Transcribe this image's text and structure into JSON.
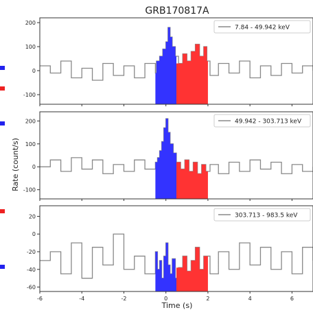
{
  "chart_data": {
    "type": "line",
    "title": "GRB170817A",
    "xlabel": "Time (s)",
    "ylabel": "Rate (count/s)",
    "xlim": [
      -6,
      7
    ],
    "x_ticks": [
      -6,
      -4,
      -2,
      0,
      2,
      4,
      6
    ],
    "colors": {
      "background": "#888888",
      "blue": "#3333ff",
      "red": "#ff3333"
    },
    "highlight": {
      "blue": [
        -0.5,
        0.5
      ],
      "red": [
        0.5,
        2.0
      ]
    },
    "panels": [
      {
        "legend": "7.84 - 49.942 keV",
        "ylim": [
          -140,
          220
        ],
        "y_ticks": [
          -100,
          0,
          100,
          200
        ],
        "series": [
          {
            "x": -6.0,
            "y": 20
          },
          {
            "x": -5.5,
            "y": -10
          },
          {
            "x": -5.0,
            "y": 40
          },
          {
            "x": -4.5,
            "y": -30
          },
          {
            "x": -4.0,
            "y": 10
          },
          {
            "x": -3.5,
            "y": -40
          },
          {
            "x": -3.0,
            "y": 30
          },
          {
            "x": -2.5,
            "y": -20
          },
          {
            "x": -2.0,
            "y": 20
          },
          {
            "x": -1.5,
            "y": -30
          },
          {
            "x": -1.0,
            "y": 30
          },
          {
            "x": -0.5,
            "y": -10
          },
          {
            "x": -0.45,
            "y": 40
          },
          {
            "x": -0.3,
            "y": 60
          },
          {
            "x": -0.15,
            "y": 90
          },
          {
            "x": 0.0,
            "y": 120
          },
          {
            "x": 0.1,
            "y": 180
          },
          {
            "x": 0.2,
            "y": 140
          },
          {
            "x": 0.3,
            "y": 100
          },
          {
            "x": 0.45,
            "y": 60
          },
          {
            "x": 0.6,
            "y": 30
          },
          {
            "x": 0.8,
            "y": 70
          },
          {
            "x": 1.0,
            "y": 40
          },
          {
            "x": 1.2,
            "y": 80
          },
          {
            "x": 1.4,
            "y": 110
          },
          {
            "x": 1.6,
            "y": 60
          },
          {
            "x": 1.8,
            "y": 100
          },
          {
            "x": 1.95,
            "y": 40
          },
          {
            "x": 2.1,
            "y": -20
          },
          {
            "x": 2.5,
            "y": 30
          },
          {
            "x": 3.0,
            "y": -10
          },
          {
            "x": 3.5,
            "y": 40
          },
          {
            "x": 4.0,
            "y": -30
          },
          {
            "x": 4.5,
            "y": 20
          },
          {
            "x": 5.0,
            "y": -20
          },
          {
            "x": 5.5,
            "y": 30
          },
          {
            "x": 6.0,
            "y": -10
          },
          {
            "x": 6.5,
            "y": 20
          },
          {
            "x": 7.0,
            "y": 0
          }
        ]
      },
      {
        "legend": "49.942 - 303.713 keV",
        "ylim": [
          -140,
          240
        ],
        "y_ticks": [
          -100,
          0,
          100,
          200
        ],
        "series": [
          {
            "x": -6.0,
            "y": 0
          },
          {
            "x": -5.5,
            "y": 30
          },
          {
            "x": -5.0,
            "y": -20
          },
          {
            "x": -4.5,
            "y": 40
          },
          {
            "x": -4.0,
            "y": -10
          },
          {
            "x": -3.5,
            "y": 30
          },
          {
            "x": -3.0,
            "y": -30
          },
          {
            "x": -2.5,
            "y": 10
          },
          {
            "x": -2.0,
            "y": -20
          },
          {
            "x": -1.5,
            "y": 30
          },
          {
            "x": -1.0,
            "y": -10
          },
          {
            "x": -0.5,
            "y": 20
          },
          {
            "x": -0.4,
            "y": 40
          },
          {
            "x": -0.3,
            "y": 70
          },
          {
            "x": -0.2,
            "y": 110
          },
          {
            "x": -0.1,
            "y": 170
          },
          {
            "x": 0.0,
            "y": 210
          },
          {
            "x": 0.1,
            "y": 150
          },
          {
            "x": 0.2,
            "y": 100
          },
          {
            "x": 0.35,
            "y": 60
          },
          {
            "x": 0.5,
            "y": 20
          },
          {
            "x": 0.7,
            "y": -10
          },
          {
            "x": 0.9,
            "y": 30
          },
          {
            "x": 1.1,
            "y": -20
          },
          {
            "x": 1.3,
            "y": 20
          },
          {
            "x": 1.5,
            "y": -30
          },
          {
            "x": 1.7,
            "y": 10
          },
          {
            "x": 1.9,
            "y": -20
          },
          {
            "x": 2.1,
            "y": 10
          },
          {
            "x": 2.5,
            "y": -30
          },
          {
            "x": 3.0,
            "y": 20
          },
          {
            "x": 3.5,
            "y": -20
          },
          {
            "x": 4.0,
            "y": 30
          },
          {
            "x": 4.5,
            "y": -10
          },
          {
            "x": 5.0,
            "y": 20
          },
          {
            "x": 5.5,
            "y": -30
          },
          {
            "x": 6.0,
            "y": 10
          },
          {
            "x": 6.5,
            "y": -20
          },
          {
            "x": 7.0,
            "y": 0
          }
        ]
      },
      {
        "legend": "303.713 - 983.5 keV",
        "ylim": [
          -65,
          32
        ],
        "y_ticks": [
          -60,
          -40,
          -20,
          0,
          20
        ],
        "series": [
          {
            "x": -6.0,
            "y": -30
          },
          {
            "x": -5.5,
            "y": -20
          },
          {
            "x": -5.0,
            "y": -45
          },
          {
            "x": -4.5,
            "y": -10
          },
          {
            "x": -4.0,
            "y": -50
          },
          {
            "x": -3.5,
            "y": -15
          },
          {
            "x": -3.0,
            "y": -35
          },
          {
            "x": -2.5,
            "y": 0
          },
          {
            "x": -2.0,
            "y": -40
          },
          {
            "x": -1.5,
            "y": -25
          },
          {
            "x": -1.0,
            "y": -45
          },
          {
            "x": -0.5,
            "y": -20
          },
          {
            "x": -0.4,
            "y": -40
          },
          {
            "x": -0.3,
            "y": -30
          },
          {
            "x": -0.2,
            "y": -50
          },
          {
            "x": -0.1,
            "y": -25
          },
          {
            "x": 0.0,
            "y": -10
          },
          {
            "x": 0.1,
            "y": -35
          },
          {
            "x": 0.2,
            "y": -45
          },
          {
            "x": 0.3,
            "y": -28
          },
          {
            "x": 0.45,
            "y": -50
          },
          {
            "x": 0.6,
            "y": -38
          },
          {
            "x": 0.8,
            "y": -25
          },
          {
            "x": 1.0,
            "y": -42
          },
          {
            "x": 1.2,
            "y": -30
          },
          {
            "x": 1.4,
            "y": -15
          },
          {
            "x": 1.6,
            "y": -40
          },
          {
            "x": 1.8,
            "y": -25
          },
          {
            "x": 2.1,
            "y": -45
          },
          {
            "x": 2.5,
            "y": -20
          },
          {
            "x": 3.0,
            "y": -40
          },
          {
            "x": 3.5,
            "y": -10
          },
          {
            "x": 4.0,
            "y": -35
          },
          {
            "x": 4.5,
            "y": -15
          },
          {
            "x": 5.0,
            "y": -40
          },
          {
            "x": 5.5,
            "y": -20
          },
          {
            "x": 6.0,
            "y": -45
          },
          {
            "x": 6.5,
            "y": -15
          },
          {
            "x": 7.0,
            "y": -30
          }
        ]
      }
    ]
  }
}
